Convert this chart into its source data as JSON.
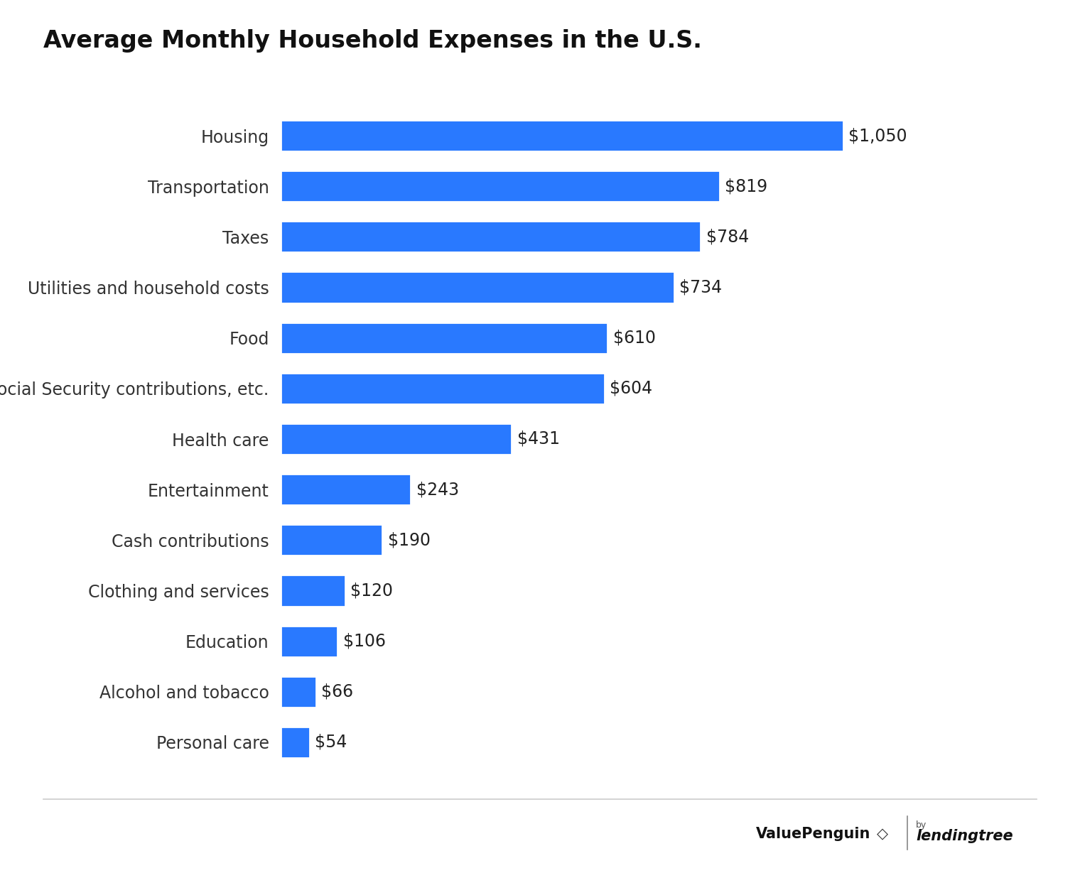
{
  "title": "Average Monthly Household Expenses in the U.S.",
  "categories": [
    "Housing",
    "Transportation",
    "Taxes",
    "Utilities and household costs",
    "Food",
    "Social Security contributions, etc.",
    "Health care",
    "Entertainment",
    "Cash contributions",
    "Clothing and services",
    "Education",
    "Alcohol and tobacco",
    "Personal care"
  ],
  "values": [
    1050,
    819,
    784,
    734,
    610,
    604,
    431,
    243,
    190,
    120,
    106,
    66,
    54
  ],
  "labels": [
    "$1,050",
    "$819",
    "$784",
    "$734",
    "$610",
    "$604",
    "$431",
    "$243",
    "$190",
    "$120",
    "$106",
    "$66",
    "$54"
  ],
  "bar_color": "#2979FF",
  "background_color": "#FFFFFF",
  "title_fontsize": 24,
  "label_fontsize": 17,
  "category_fontsize": 17,
  "xlim": [
    0,
    1250
  ],
  "bar_height": 0.62
}
